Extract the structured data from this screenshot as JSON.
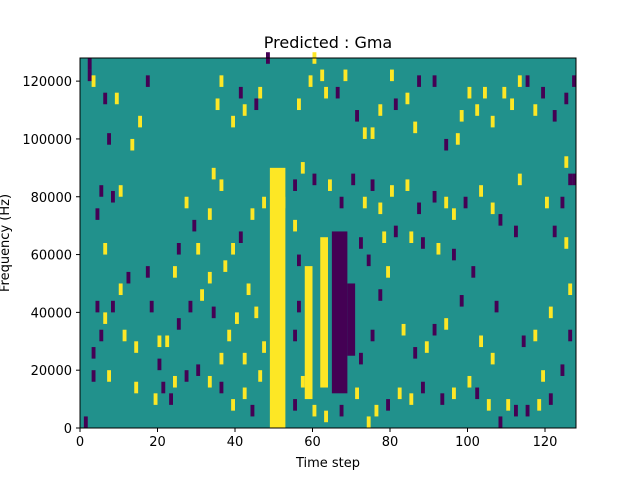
{
  "chart_data": {
    "type": "heatmap",
    "title": "Predicted : Gma",
    "xlabel": "Time step",
    "ylabel": "Frequency (Hz)",
    "xlim": [
      0,
      128
    ],
    "ylim": [
      0,
      128000
    ],
    "grid": false,
    "n_time_bins": 128,
    "n_freq_bins": 48,
    "colors": {
      "low": "#440154",
      "mid": "#21918c",
      "high": "#fde725"
    },
    "x_ticks": [
      0,
      20,
      40,
      60,
      80,
      100,
      120
    ],
    "x_tick_labels": [
      "0",
      "20",
      "40",
      "60",
      "80",
      "100",
      "120"
    ],
    "y_ticks": [
      0,
      20000,
      40000,
      60000,
      80000,
      100000,
      120000
    ],
    "y_tick_labels": [
      "0",
      "20000",
      "40000",
      "60000",
      "80000",
      "100000",
      "120000"
    ],
    "background_value": 0,
    "dense_bands": [
      {
        "value": 1,
        "x0": 49,
        "x1": 53,
        "y0": 0,
        "y1": 90000
      },
      {
        "value": 1,
        "x0": 58,
        "x1": 60,
        "y0": 10000,
        "y1": 56000
      },
      {
        "value": 1,
        "x0": 62,
        "x1": 64,
        "y0": 14000,
        "y1": 66000
      },
      {
        "value": -1,
        "x0": 65,
        "x1": 69,
        "y0": 12000,
        "y1": 68000
      },
      {
        "value": -1,
        "x0": 69,
        "x1": 71,
        "y0": 25000,
        "y1": 50000
      }
    ],
    "scatter_cells": [
      {
        "t": 1,
        "f": 0,
        "v": -1
      },
      {
        "t": 2,
        "f": 124000,
        "v": -1
      },
      {
        "t": 2,
        "f": 120000,
        "v": -1
      },
      {
        "t": 3,
        "f": 118000,
        "v": 1
      },
      {
        "t": 5,
        "f": 80000,
        "v": -1
      },
      {
        "t": 4,
        "f": 72000,
        "v": -1
      },
      {
        "t": 6,
        "f": 112000,
        "v": -1
      },
      {
        "t": 9,
        "f": 112000,
        "v": 1
      },
      {
        "t": 7,
        "f": 98000,
        "v": -1
      },
      {
        "t": 6,
        "f": 60000,
        "v": 1
      },
      {
        "t": 8,
        "f": 78000,
        "v": -1
      },
      {
        "t": 10,
        "f": 80000,
        "v": 1
      },
      {
        "t": 4,
        "f": 40000,
        "v": -1
      },
      {
        "t": 5,
        "f": 30000,
        "v": -1
      },
      {
        "t": 3,
        "f": 24000,
        "v": -1
      },
      {
        "t": 3,
        "f": 16000,
        "v": -1
      },
      {
        "t": 7,
        "f": 16000,
        "v": 1
      },
      {
        "t": 6,
        "f": 36000,
        "v": 1
      },
      {
        "t": 8,
        "f": 40000,
        "v": -1
      },
      {
        "t": 10,
        "f": 46000,
        "v": 1
      },
      {
        "t": 12,
        "f": 50000,
        "v": -1
      },
      {
        "t": 11,
        "f": 30000,
        "v": 1
      },
      {
        "t": 14,
        "f": 26000,
        "v": 1
      },
      {
        "t": 14,
        "f": 12000,
        "v": 1
      },
      {
        "t": 13,
        "f": 96000,
        "v": 1
      },
      {
        "t": 15,
        "f": 104000,
        "v": 1
      },
      {
        "t": 17,
        "f": 118000,
        "v": -1
      },
      {
        "t": 17,
        "f": 52000,
        "v": -1
      },
      {
        "t": 18,
        "f": 40000,
        "v": -1
      },
      {
        "t": 20,
        "f": 28000,
        "v": 1
      },
      {
        "t": 21,
        "f": 12000,
        "v": -1
      },
      {
        "t": 19,
        "f": 8000,
        "v": 1
      },
      {
        "t": 23,
        "f": 8000,
        "v": -1
      },
      {
        "t": 24,
        "f": 52000,
        "v": 1
      },
      {
        "t": 25,
        "f": 60000,
        "v": -1
      },
      {
        "t": 27,
        "f": 76000,
        "v": 1
      },
      {
        "t": 29,
        "f": 68000,
        "v": -1
      },
      {
        "t": 30,
        "f": 60000,
        "v": 1
      },
      {
        "t": 33,
        "f": 72000,
        "v": 1
      },
      {
        "t": 34,
        "f": 86000,
        "v": 1
      },
      {
        "t": 36,
        "f": 82000,
        "v": 1
      },
      {
        "t": 35,
        "f": 110000,
        "v": 1
      },
      {
        "t": 36,
        "f": 118000,
        "v": 1
      },
      {
        "t": 39,
        "f": 104000,
        "v": 1
      },
      {
        "t": 41,
        "f": 114000,
        "v": -1
      },
      {
        "t": 42,
        "f": 108000,
        "v": 1
      },
      {
        "t": 45,
        "f": 110000,
        "v": -1
      },
      {
        "t": 46,
        "f": 114000,
        "v": 1
      },
      {
        "t": 48,
        "f": 126000,
        "v": -1
      },
      {
        "t": 56,
        "f": 110000,
        "v": 1
      },
      {
        "t": 59,
        "f": 118000,
        "v": 1
      },
      {
        "t": 60,
        "f": 126000,
        "v": 1
      },
      {
        "t": 62,
        "f": 120000,
        "v": 1
      },
      {
        "t": 63,
        "f": 114000,
        "v": 1
      },
      {
        "t": 66,
        "f": 114000,
        "v": -1
      },
      {
        "t": 68,
        "f": 120000,
        "v": 1
      },
      {
        "t": 71,
        "f": 106000,
        "v": -1
      },
      {
        "t": 73,
        "f": 100000,
        "v": 1
      },
      {
        "t": 75,
        "f": 100000,
        "v": 1
      },
      {
        "t": 77,
        "f": 108000,
        "v": 1
      },
      {
        "t": 80,
        "f": 120000,
        "v": 1
      },
      {
        "t": 81,
        "f": 110000,
        "v": -1
      },
      {
        "t": 84,
        "f": 112000,
        "v": 1
      },
      {
        "t": 86,
        "f": 102000,
        "v": 1
      },
      {
        "t": 87,
        "f": 118000,
        "v": -1
      },
      {
        "t": 91,
        "f": 118000,
        "v": -1
      },
      {
        "t": 94,
        "f": 96000,
        "v": -1
      },
      {
        "t": 97,
        "f": 98000,
        "v": 1
      },
      {
        "t": 98,
        "f": 106000,
        "v": 1
      },
      {
        "t": 100,
        "f": 114000,
        "v": 1
      },
      {
        "t": 102,
        "f": 108000,
        "v": 1
      },
      {
        "t": 104,
        "f": 114000,
        "v": 1
      },
      {
        "t": 106,
        "f": 104000,
        "v": 1
      },
      {
        "t": 109,
        "f": 114000,
        "v": 1
      },
      {
        "t": 111,
        "f": 110000,
        "v": 1
      },
      {
        "t": 113,
        "f": 118000,
        "v": 1
      },
      {
        "t": 115,
        "f": 118000,
        "v": -1
      },
      {
        "t": 117,
        "f": 108000,
        "v": 1
      },
      {
        "t": 119,
        "f": 114000,
        "v": -1
      },
      {
        "t": 122,
        "f": 106000,
        "v": -1
      },
      {
        "t": 125,
        "f": 112000,
        "v": -1
      },
      {
        "t": 127,
        "f": 118000,
        "v": -1
      },
      {
        "t": 125,
        "f": 90000,
        "v": 1
      },
      {
        "t": 126,
        "f": 84000,
        "v": -1
      },
      {
        "t": 127,
        "f": 84000,
        "v": -1
      },
      {
        "t": 124,
        "f": 76000,
        "v": -1
      },
      {
        "t": 120,
        "f": 76000,
        "v": 1
      },
      {
        "t": 122,
        "f": 66000,
        "v": -1
      },
      {
        "t": 125,
        "f": 62000,
        "v": 1
      },
      {
        "t": 126,
        "f": 46000,
        "v": 1
      },
      {
        "t": 121,
        "f": 38000,
        "v": 1
      },
      {
        "t": 126,
        "f": 30000,
        "v": -1
      },
      {
        "t": 124,
        "f": 18000,
        "v": -1
      },
      {
        "t": 119,
        "f": 16000,
        "v": 1
      },
      {
        "t": 121,
        "f": 8000,
        "v": -1
      },
      {
        "t": 118,
        "f": 6000,
        "v": 1
      },
      {
        "t": 115,
        "f": 4000,
        "v": -1
      },
      {
        "t": 112,
        "f": 4000,
        "v": -1
      },
      {
        "t": 110,
        "f": 6000,
        "v": 1
      },
      {
        "t": 108,
        "f": 0,
        "v": -1
      },
      {
        "t": 105,
        "f": 6000,
        "v": 1
      },
      {
        "t": 102,
        "f": 10000,
        "v": -1
      },
      {
        "t": 100,
        "f": 14000,
        "v": 1
      },
      {
        "t": 96,
        "f": 10000,
        "v": 1
      },
      {
        "t": 93,
        "f": 8000,
        "v": -1
      },
      {
        "t": 88,
        "f": 12000,
        "v": -1
      },
      {
        "t": 85,
        "f": 8000,
        "v": 1
      },
      {
        "t": 82,
        "f": 10000,
        "v": 1
      },
      {
        "t": 79,
        "f": 6000,
        "v": -1
      },
      {
        "t": 76,
        "f": 4000,
        "v": 1
      },
      {
        "t": 74,
        "f": 0,
        "v": 1
      },
      {
        "t": 83,
        "f": 32000,
        "v": 1
      },
      {
        "t": 86,
        "f": 24000,
        "v": -1
      },
      {
        "t": 89,
        "f": 26000,
        "v": 1
      },
      {
        "t": 91,
        "f": 32000,
        "v": -1
      },
      {
        "t": 94,
        "f": 34000,
        "v": 1
      },
      {
        "t": 98,
        "f": 42000,
        "v": -1
      },
      {
        "t": 103,
        "f": 28000,
        "v": 1
      },
      {
        "t": 106,
        "f": 22000,
        "v": 1
      },
      {
        "t": 107,
        "f": 40000,
        "v": -1
      },
      {
        "t": 114,
        "f": 28000,
        "v": -1
      },
      {
        "t": 117,
        "f": 30000,
        "v": 1
      },
      {
        "t": 101,
        "f": 52000,
        "v": -1
      },
      {
        "t": 96,
        "f": 58000,
        "v": -1
      },
      {
        "t": 92,
        "f": 60000,
        "v": 1
      },
      {
        "t": 88,
        "f": 62000,
        "v": -1
      },
      {
        "t": 85,
        "f": 64000,
        "v": 1
      },
      {
        "t": 81,
        "f": 66000,
        "v": -1
      },
      {
        "t": 78,
        "f": 64000,
        "v": 1
      },
      {
        "t": 77,
        "f": 74000,
        "v": 1
      },
      {
        "t": 80,
        "f": 80000,
        "v": 1
      },
      {
        "t": 84,
        "f": 82000,
        "v": 1
      },
      {
        "t": 87,
        "f": 74000,
        "v": -1
      },
      {
        "t": 91,
        "f": 78000,
        "v": -1
      },
      {
        "t": 94,
        "f": 76000,
        "v": 1
      },
      {
        "t": 96,
        "f": 72000,
        "v": 1
      },
      {
        "t": 99,
        "f": 76000,
        "v": -1
      },
      {
        "t": 103,
        "f": 80000,
        "v": 1
      },
      {
        "t": 106,
        "f": 74000,
        "v": 1
      },
      {
        "t": 108,
        "f": 70000,
        "v": -1
      },
      {
        "t": 113,
        "f": 84000,
        "v": 1
      },
      {
        "t": 112,
        "f": 66000,
        "v": -1
      },
      {
        "t": 75,
        "f": 82000,
        "v": -1
      },
      {
        "t": 73,
        "f": 76000,
        "v": 1
      },
      {
        "t": 70,
        "f": 84000,
        "v": -1
      },
      {
        "t": 67,
        "f": 76000,
        "v": -1
      },
      {
        "t": 64,
        "f": 82000,
        "v": 1
      },
      {
        "t": 60,
        "f": 84000,
        "v": -1
      },
      {
        "t": 57,
        "f": 88000,
        "v": 1
      },
      {
        "t": 55,
        "f": 82000,
        "v": -1
      },
      {
        "t": 52,
        "f": 76000,
        "v": 1
      },
      {
        "t": 47,
        "f": 76000,
        "v": 1
      },
      {
        "t": 44,
        "f": 72000,
        "v": 1
      },
      {
        "t": 41,
        "f": 64000,
        "v": -1
      },
      {
        "t": 39,
        "f": 60000,
        "v": 1
      },
      {
        "t": 37,
        "f": 54000,
        "v": 1
      },
      {
        "t": 33,
        "f": 50000,
        "v": 1
      },
      {
        "t": 31,
        "f": 44000,
        "v": 1
      },
      {
        "t": 28,
        "f": 40000,
        "v": -1
      },
      {
        "t": 25,
        "f": 34000,
        "v": -1
      },
      {
        "t": 22,
        "f": 28000,
        "v": 1
      },
      {
        "t": 20,
        "f": 20000,
        "v": -1
      },
      {
        "t": 24,
        "f": 14000,
        "v": 1
      },
      {
        "t": 27,
        "f": 16000,
        "v": -1
      },
      {
        "t": 30,
        "f": 18000,
        "v": -1
      },
      {
        "t": 33,
        "f": 14000,
        "v": 1
      },
      {
        "t": 36,
        "f": 12000,
        "v": -1
      },
      {
        "t": 39,
        "f": 6000,
        "v": 1
      },
      {
        "t": 42,
        "f": 10000,
        "v": 1
      },
      {
        "t": 44,
        "f": 4000,
        "v": -1
      },
      {
        "t": 46,
        "f": 16000,
        "v": 1
      },
      {
        "t": 47,
        "f": 26000,
        "v": 1
      },
      {
        "t": 45,
        "f": 38000,
        "v": 1
      },
      {
        "t": 43,
        "f": 46000,
        "v": 1
      },
      {
        "t": 40,
        "f": 36000,
        "v": 1
      },
      {
        "t": 38,
        "f": 30000,
        "v": 1
      },
      {
        "t": 36,
        "f": 22000,
        "v": 1
      },
      {
        "t": 34,
        "f": 38000,
        "v": -1
      },
      {
        "t": 42,
        "f": 22000,
        "v": 1
      },
      {
        "t": 55,
        "f": 30000,
        "v": -1
      },
      {
        "t": 57,
        "f": 14000,
        "v": 1
      },
      {
        "t": 55,
        "f": 6000,
        "v": -1
      },
      {
        "t": 60,
        "f": 4000,
        "v": 1
      },
      {
        "t": 63,
        "f": 2000,
        "v": 1
      },
      {
        "t": 67,
        "f": 4000,
        "v": -1
      },
      {
        "t": 71,
        "f": 10000,
        "v": 1
      },
      {
        "t": 72,
        "f": 22000,
        "v": -1
      },
      {
        "t": 75,
        "f": 30000,
        "v": -1
      },
      {
        "t": 77,
        "f": 44000,
        "v": -1
      },
      {
        "t": 79,
        "f": 52000,
        "v": 1
      },
      {
        "t": 74,
        "f": 56000,
        "v": -1
      },
      {
        "t": 72,
        "f": 62000,
        "v": -1
      },
      {
        "t": 56,
        "f": 56000,
        "v": -1
      },
      {
        "t": 55,
        "f": 68000,
        "v": 1
      },
      {
        "t": 56,
        "f": 40000,
        "v": -1
      }
    ]
  }
}
